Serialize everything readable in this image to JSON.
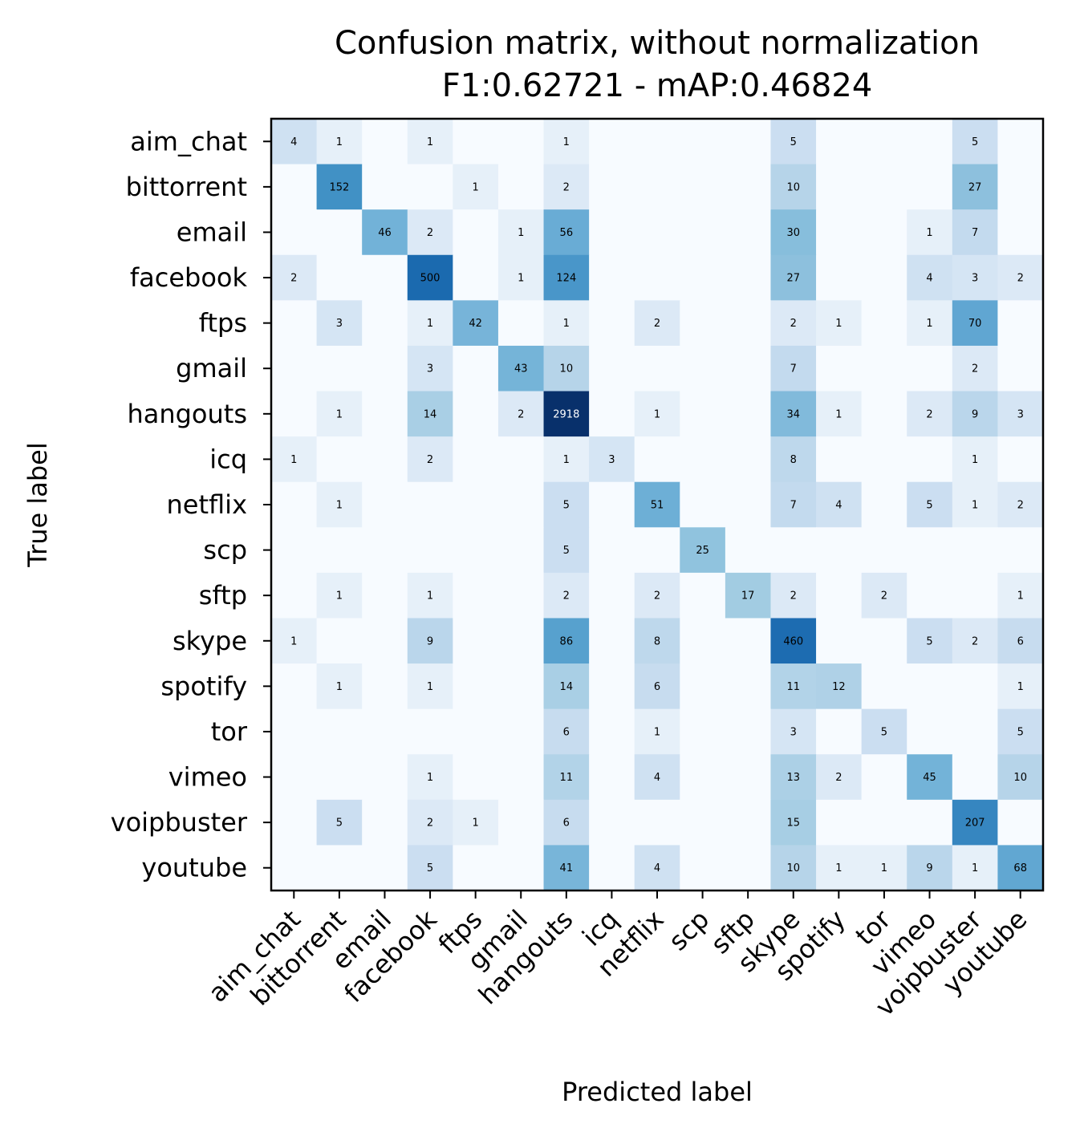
{
  "chart_data": {
    "type": "heatmap",
    "title": "Confusion matrix, without normalization",
    "subtitle": "F1:0.62721 - mAP:0.46824",
    "xlabel": "Predicted label",
    "ylabel": "True label",
    "colormap": "Blues",
    "grid": false,
    "categories": [
      "aim_chat",
      "bittorrent",
      "email",
      "facebook",
      "ftps",
      "gmail",
      "hangouts",
      "icq",
      "netflix",
      "scp",
      "sftp",
      "skype",
      "spotify",
      "tor",
      "vimeo",
      "voipbuster",
      "youtube"
    ],
    "matrix": [
      [
        4,
        1,
        0,
        1,
        0,
        0,
        1,
        0,
        0,
        0,
        0,
        5,
        0,
        0,
        0,
        5,
        0
      ],
      [
        0,
        152,
        0,
        0,
        1,
        0,
        2,
        0,
        0,
        0,
        0,
        10,
        0,
        0,
        0,
        27,
        0
      ],
      [
        0,
        0,
        46,
        2,
        0,
        1,
        56,
        0,
        0,
        0,
        0,
        30,
        0,
        0,
        1,
        7,
        0
      ],
      [
        2,
        0,
        0,
        500,
        0,
        1,
        124,
        0,
        0,
        0,
        0,
        27,
        0,
        0,
        4,
        3,
        2
      ],
      [
        0,
        3,
        0,
        1,
        42,
        0,
        1,
        0,
        2,
        0,
        0,
        2,
        1,
        0,
        1,
        70,
        0
      ],
      [
        0,
        0,
        0,
        3,
        0,
        43,
        10,
        0,
        0,
        0,
        0,
        7,
        0,
        0,
        0,
        2,
        0
      ],
      [
        0,
        1,
        0,
        14,
        0,
        2,
        2918,
        0,
        1,
        0,
        0,
        34,
        1,
        0,
        2,
        9,
        3
      ],
      [
        1,
        0,
        0,
        2,
        0,
        0,
        1,
        3,
        0,
        0,
        0,
        8,
        0,
        0,
        0,
        1,
        0
      ],
      [
        0,
        1,
        0,
        0,
        0,
        0,
        5,
        0,
        51,
        0,
        0,
        7,
        4,
        0,
        5,
        1,
        2
      ],
      [
        0,
        0,
        0,
        0,
        0,
        0,
        5,
        0,
        0,
        25,
        0,
        0,
        0,
        0,
        0,
        0,
        0
      ],
      [
        0,
        1,
        0,
        1,
        0,
        0,
        2,
        0,
        2,
        0,
        17,
        2,
        0,
        2,
        0,
        0,
        1
      ],
      [
        1,
        0,
        0,
        9,
        0,
        0,
        86,
        0,
        8,
        0,
        0,
        460,
        0,
        0,
        5,
        2,
        6
      ],
      [
        0,
        1,
        0,
        1,
        0,
        0,
        14,
        0,
        6,
        0,
        0,
        11,
        12,
        0,
        0,
        0,
        1
      ],
      [
        0,
        0,
        0,
        0,
        0,
        0,
        6,
        0,
        1,
        0,
        0,
        3,
        0,
        5,
        0,
        0,
        5
      ],
      [
        0,
        0,
        0,
        1,
        0,
        0,
        11,
        0,
        4,
        0,
        0,
        13,
        2,
        0,
        45,
        0,
        10
      ],
      [
        0,
        5,
        0,
        2,
        1,
        0,
        6,
        0,
        0,
        0,
        0,
        15,
        0,
        0,
        0,
        207,
        0
      ],
      [
        0,
        0,
        0,
        5,
        0,
        0,
        41,
        0,
        4,
        0,
        0,
        10,
        1,
        1,
        9,
        1,
        68
      ]
    ]
  }
}
